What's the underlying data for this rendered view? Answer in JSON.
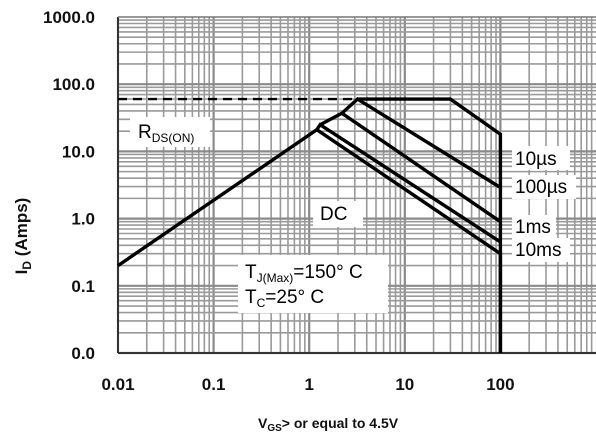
{
  "chart_data": {
    "type": "line",
    "x_scale": "log",
    "y_scale": "log",
    "xlim": [
      0.01,
      1000
    ],
    "ylim": [
      0.01,
      1000
    ],
    "grid": true,
    "xlabel": {
      "main": "V",
      "sub": "GS",
      "rest": "> or equal to 4.5V"
    },
    "ylabel": {
      "main": "I",
      "sub": "D",
      "rest": " (Amps)"
    },
    "x_ticks": [
      {
        "value": 0.01,
        "label": "0.01"
      },
      {
        "value": 0.1,
        "label": "0.1"
      },
      {
        "value": 1,
        "label": "1"
      },
      {
        "value": 10,
        "label": "10"
      },
      {
        "value": 100,
        "label": "100"
      }
    ],
    "y_ticks": [
      {
        "value": 0.01,
        "label": "0.0"
      },
      {
        "value": 0.1,
        "label": "0.1"
      },
      {
        "value": 1,
        "label": "1.0"
      },
      {
        "value": 10,
        "label": "10.0"
      },
      {
        "value": 100,
        "label": "100.0"
      },
      {
        "value": 1000,
        "label": "1000.0"
      }
    ],
    "series": [
      {
        "name": "DC",
        "points": [
          [
            0.01,
            0.2
          ],
          [
            1.2,
            21
          ],
          [
            100,
            0.3
          ],
          [
            100,
            0.01
          ]
        ]
      },
      {
        "name": "10ms",
        "points": [
          [
            1.2,
            21
          ],
          [
            1.3,
            25
          ],
          [
            100,
            0.45
          ]
        ]
      },
      {
        "name": "1ms",
        "points": [
          [
            1.3,
            25
          ],
          [
            2.2,
            37
          ],
          [
            100,
            0.9
          ]
        ]
      },
      {
        "name": "100µs",
        "points": [
          [
            2.2,
            37
          ],
          [
            3.2,
            60
          ],
          [
            100,
            2.9
          ]
        ]
      },
      {
        "name": "10µs",
        "points": [
          [
            3.2,
            60
          ],
          [
            30,
            60
          ],
          [
            100,
            18
          ],
          [
            100,
            0.01
          ]
        ]
      },
      {
        "name": "RDS(ON) limit",
        "style": "dashed",
        "points": [
          [
            0.01,
            60
          ],
          [
            3.2,
            60
          ]
        ]
      }
    ],
    "annotations": [
      {
        "id": "rds",
        "main": "R",
        "sub": "DS(ON)"
      },
      {
        "id": "dc",
        "text": "DC"
      },
      {
        "id": "10us",
        "text": "10µs"
      },
      {
        "id": "100us",
        "text": "100µs"
      },
      {
        "id": "1ms",
        "text": "1ms"
      },
      {
        "id": "10ms",
        "text": "10ms"
      },
      {
        "id": "tj",
        "main": "T",
        "sub": "J(Max)",
        "rest": "=150° C"
      },
      {
        "id": "tc",
        "main": "T",
        "sub": "C",
        "rest": "=25° C"
      }
    ]
  }
}
